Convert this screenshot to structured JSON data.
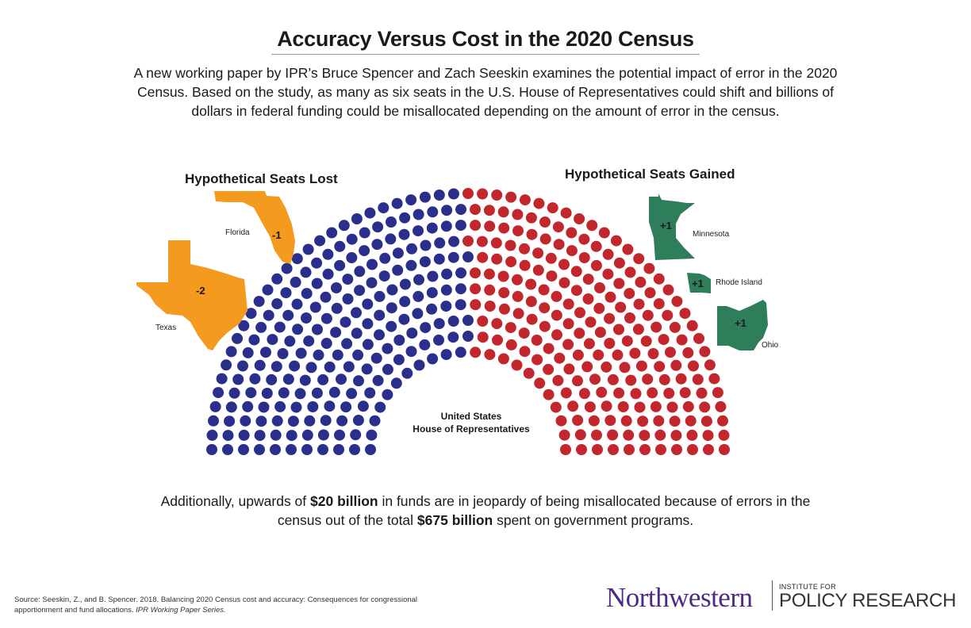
{
  "title": "Accuracy Versus Cost in the 2020 Census",
  "intro": "A new working paper by IPR’s Bruce Spencer and Zach Seeskin examines the potential impact of error in the 2020 Census. Based on the study, as many as six seats in the U.S. House of Representatives could shift and billions of dollars in federal funding could be misallocated depending on the amount of error in the census.",
  "lost": {
    "heading": "Hypothetical Seats Lost",
    "color": "#f39a1f",
    "states": [
      {
        "name": "Florida",
        "change": "-1"
      },
      {
        "name": "Texas",
        "change": "-2"
      }
    ]
  },
  "gained": {
    "heading": "Hypothetical Seats Gained",
    "color": "#2e7d5b",
    "states": [
      {
        "name": "Minnesota",
        "change": "+1"
      },
      {
        "name": "Rhode Island",
        "change": "+1"
      },
      {
        "name": "Ohio",
        "change": "+1"
      }
    ]
  },
  "house": {
    "label_line1": "United States",
    "label_line2": "House of Representatives",
    "blue_color": "#2b2f8c",
    "red_color": "#c1272d"
  },
  "bottom": {
    "part1": "Additionally, upwards of ",
    "bold1": "$20 billion",
    "part2": " in funds are in jeopardy of being misallocated because of errors in the census out of the total ",
    "bold2": "$675 billion",
    "part3": " spent on government programs."
  },
  "source": {
    "text": "Source: Seeskin, Z., and B. Spencer. 2018. Balancing 2020 Census cost and accuracy: Consequences for congressional apportionment and fund allocations. ",
    "italic": "IPR Working Paper Series."
  },
  "logo": {
    "university": "Northwestern",
    "institute_small": "INSTITUTE FOR",
    "institute_big": "POLICY RESEARCH"
  }
}
